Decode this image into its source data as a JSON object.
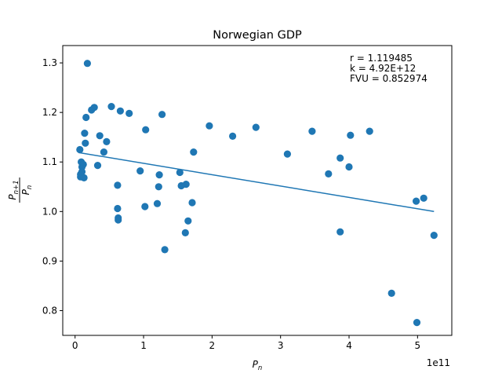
{
  "chart_data": {
    "type": "scatter",
    "title": "Norwegian GDP",
    "xlabel": "P_n",
    "ylabel": "P_{n+1} / P_n",
    "x_offset_label": "1e11",
    "xlim": [
      -0.18,
      5.5
    ],
    "ylim": [
      0.75,
      1.335
    ],
    "x_ticks": [
      0,
      1,
      2,
      3,
      4,
      5
    ],
    "y_ticks": [
      0.8,
      0.9,
      1.0,
      1.1,
      1.2,
      1.3
    ],
    "x_tick_labels": [
      "0",
      "1",
      "2",
      "3",
      "4",
      "5"
    ],
    "y_tick_labels": [
      "0.8",
      "0.9",
      "1.0",
      "1.1",
      "1.2",
      "1.3"
    ],
    "grid": false,
    "point_color": "#1f77b4",
    "line_color": "#1f77b4",
    "annotations": [
      "r = 1.119485",
      "k = 4.92E+12",
      "FVU = 0.852974"
    ],
    "fit_line": {
      "x": [
        0.05,
        5.24
      ],
      "y": [
        1.119,
        1.0
      ]
    },
    "points": [
      [
        0.07,
        1.125
      ],
      [
        0.08,
        1.075
      ],
      [
        0.08,
        1.07
      ],
      [
        0.09,
        1.1
      ],
      [
        0.1,
        1.09
      ],
      [
        0.1,
        1.08
      ],
      [
        0.12,
        1.095
      ],
      [
        0.13,
        1.068
      ],
      [
        0.14,
        1.158
      ],
      [
        0.15,
        1.138
      ],
      [
        0.16,
        1.19
      ],
      [
        0.18,
        1.299
      ],
      [
        0.24,
        1.205
      ],
      [
        0.28,
        1.21
      ],
      [
        0.33,
        1.093
      ],
      [
        0.36,
        1.153
      ],
      [
        0.42,
        1.12
      ],
      [
        0.46,
        1.141
      ],
      [
        0.53,
        1.212
      ],
      [
        0.62,
        1.053
      ],
      [
        0.62,
        1.006
      ],
      [
        0.63,
        0.987
      ],
      [
        0.63,
        0.983
      ],
      [
        0.66,
        1.203
      ],
      [
        0.79,
        1.198
      ],
      [
        0.95,
        1.082
      ],
      [
        1.02,
        1.01
      ],
      [
        1.03,
        1.165
      ],
      [
        1.2,
        1.016
      ],
      [
        1.22,
        1.05
      ],
      [
        1.23,
        1.074
      ],
      [
        1.27,
        1.196
      ],
      [
        1.31,
        0.923
      ],
      [
        1.53,
        1.079
      ],
      [
        1.55,
        1.052
      ],
      [
        1.61,
        0.957
      ],
      [
        1.62,
        1.055
      ],
      [
        1.65,
        0.981
      ],
      [
        1.71,
        1.018
      ],
      [
        1.73,
        1.12
      ],
      [
        1.96,
        1.173
      ],
      [
        2.3,
        1.152
      ],
      [
        2.64,
        1.17
      ],
      [
        3.1,
        1.116
      ],
      [
        3.46,
        1.162
      ],
      [
        3.7,
        1.076
      ],
      [
        3.87,
        1.108
      ],
      [
        3.87,
        0.959
      ],
      [
        4.0,
        1.09
      ],
      [
        4.02,
        1.154
      ],
      [
        4.3,
        1.162
      ],
      [
        4.62,
        0.835
      ],
      [
        4.98,
        1.021
      ],
      [
        4.99,
        0.776
      ],
      [
        5.09,
        1.027
      ],
      [
        5.24,
        0.952
      ]
    ]
  }
}
